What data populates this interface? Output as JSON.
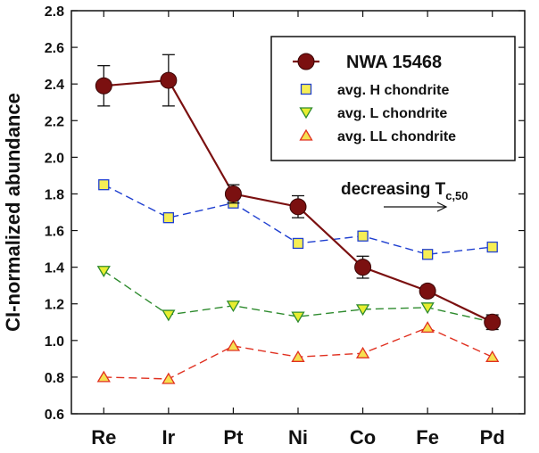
{
  "chart_data": {
    "type": "line",
    "ylabel": "CI-normalized abundance",
    "xlabel": "",
    "ylim": [
      0.6,
      2.8
    ],
    "yticks": [
      "0.6",
      "0.8",
      "1.0",
      "1.2",
      "1.4",
      "1.6",
      "1.8",
      "2.0",
      "2.2",
      "2.4",
      "2.6",
      "2.8"
    ],
    "categories": [
      "Re",
      "Ir",
      "Pt",
      "Ni",
      "Co",
      "Fe",
      "Pd"
    ],
    "legend_position": "top-right",
    "grid": false,
    "series": [
      {
        "name": "NWA 15468",
        "color": "#7b1010",
        "marker": "circle",
        "line": "solid",
        "values": [
          2.39,
          2.42,
          1.8,
          1.73,
          1.4,
          1.27,
          1.1
        ],
        "errors": [
          0.11,
          0.14,
          0.05,
          0.06,
          0.06,
          0.03,
          0.04
        ]
      },
      {
        "name": "avg. H chondrite",
        "color": "#1f3fd0",
        "fill": "#f6ee55",
        "marker": "square",
        "line": "dashed",
        "values": [
          1.85,
          1.67,
          1.75,
          1.53,
          1.57,
          1.47,
          1.51
        ]
      },
      {
        "name": "avg. L chondrite",
        "color": "#2e8b2e",
        "fill": "#e8ee30",
        "marker": "triangle-down",
        "line": "dashed",
        "values": [
          1.38,
          1.14,
          1.19,
          1.13,
          1.17,
          1.18,
          1.1
        ]
      },
      {
        "name": "avg. LL chondrite",
        "color": "#e03020",
        "fill": "#f6e050",
        "marker": "triangle-up",
        "line": "dashed",
        "values": [
          0.8,
          0.79,
          0.97,
          0.91,
          0.93,
          1.07,
          0.91
        ]
      }
    ],
    "annotation": {
      "text_main": "decreasing T",
      "text_sub": "c,50"
    }
  }
}
